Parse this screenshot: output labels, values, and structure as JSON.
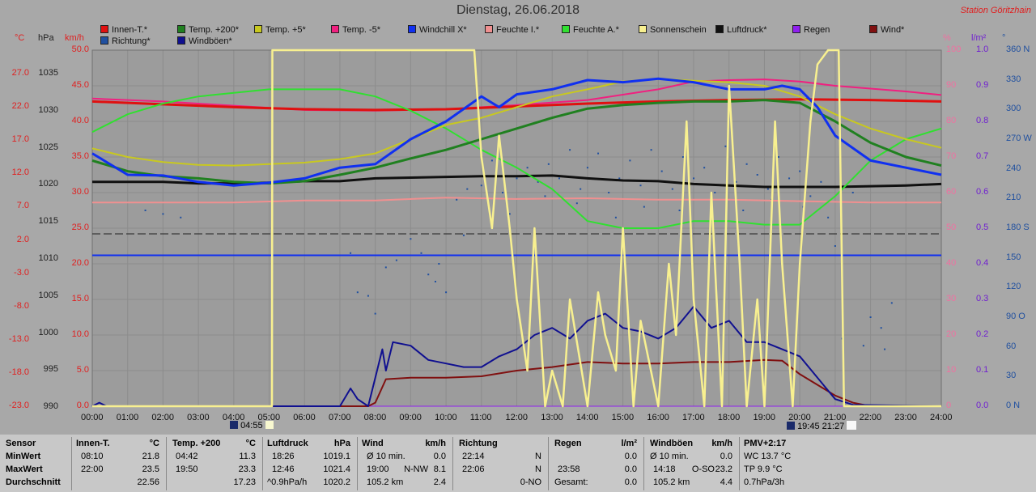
{
  "title": "Dienstag, 26.06.2018",
  "station": "Station Göritzhain",
  "colors": {
    "background": "#a8a8a8",
    "plot_background": "#9c9c9c",
    "grid": "#8c8c8c",
    "temp_axis": "#e02020",
    "hpa_axis": "#202020",
    "wind_axis": "#e02020",
    "pct_axis": "#f070a0",
    "rain_axis": "#7020d0",
    "deg_axis": "#2050a0"
  },
  "legend": [
    {
      "label": "Innen-T.*",
      "color": "#e01010"
    },
    {
      "label": "Temp. +200*",
      "color": "#208020"
    },
    {
      "label": "Temp. +5*",
      "color": "#c8c820"
    },
    {
      "label": "Temp. -5*",
      "color": "#f02080"
    },
    {
      "label": "Windchill X*",
      "color": "#1030f0"
    },
    {
      "label": "Feuchte I.*",
      "color": "#f09090"
    },
    {
      "label": "Feuchte A.*",
      "color": "#30e030"
    },
    {
      "label": "Sonnenschein",
      "color": "#f8f090"
    },
    {
      "label": "Luftdruck*",
      "color": "#101010"
    },
    {
      "label": "Regen",
      "color": "#9020f0"
    },
    {
      "label": "Wind*",
      "color": "#801010"
    },
    {
      "label": "Richtung*",
      "color": "#2050a0"
    },
    {
      "label": "Windböen*",
      "color": "#101090"
    }
  ],
  "axis_units": {
    "temp": "°C",
    "hpa": "hPa",
    "wind": "km/h",
    "pct": "%",
    "rain": "l/m²",
    "deg": "°"
  },
  "axis_ticks": {
    "temp": [
      "27.0",
      "22.0",
      "17.0",
      "12.0",
      "7.0",
      "2.0",
      "-3.0",
      "-8.0",
      "-13.0",
      "-18.0",
      "-23.0"
    ],
    "hpa": [
      "1035",
      "1030",
      "1025",
      "1020",
      "1015",
      "1010",
      "1005",
      "1000",
      "995",
      "990"
    ],
    "wind": [
      "50.0",
      "45.0",
      "40.0",
      "35.0",
      "30.0",
      "25.0",
      "20.0",
      "15.0",
      "10.0",
      "5.0",
      "0.0"
    ],
    "pct": [
      "100",
      "90",
      "80",
      "70",
      "60",
      "50",
      "40",
      "30",
      "20",
      "10",
      "0"
    ],
    "rain": [
      "1.0",
      "0.9",
      "0.8",
      "0.7",
      "0.6",
      "0.5",
      "0.4",
      "0.3",
      "0.2",
      "0.1",
      "0.0"
    ],
    "deg": [
      "360 N",
      "330",
      "300",
      "270 W",
      "240",
      "210",
      "180 S",
      "150",
      "120",
      "90 O",
      "60",
      "30",
      "0 N"
    ],
    "time": [
      "00:00",
      "01:00",
      "02:00",
      "03:00",
      "04:00",
      "05:00",
      "06:00",
      "07:00",
      "08:00",
      "09:00",
      "10:00",
      "11:00",
      "12:00",
      "13:00",
      "14:00",
      "15:00",
      "16:00",
      "17:00",
      "18:00",
      "19:00",
      "20:00",
      "21:00",
      "22:00",
      "23:00",
      "24:00"
    ]
  },
  "sun_events": {
    "sunrise": "04:55",
    "moon": "19:45",
    "sunset": "21:27"
  },
  "chart_data": {
    "type": "line",
    "title": "Dienstag, 26.06.2018",
    "x_unit": "hours",
    "xlim": [
      0,
      24
    ],
    "wind_ylim": [
      0,
      50
    ],
    "series": [
      {
        "name": "Innen-T.*",
        "axis": "wind",
        "x": [
          0,
          2,
          4,
          6,
          8,
          10,
          12,
          14,
          16,
          18,
          20,
          22,
          24
        ],
        "y": [
          42.8,
          42.4,
          42.0,
          41.7,
          41.6,
          41.7,
          42.1,
          42.5,
          42.8,
          43.0,
          43.1,
          43.0,
          42.8
        ]
      },
      {
        "name": "Temp. +200*",
        "axis": "wind",
        "x": [
          0,
          1,
          2,
          3,
          4,
          5,
          6,
          7,
          8,
          9,
          10,
          11,
          12,
          13,
          14,
          15,
          16,
          17,
          18,
          19,
          20,
          21,
          22,
          23,
          24
        ],
        "y": [
          34.5,
          33.0,
          32.3,
          32.0,
          31.5,
          31.3,
          31.6,
          32.5,
          33.5,
          34.8,
          36.0,
          37.5,
          39.0,
          40.5,
          41.8,
          42.3,
          42.6,
          42.8,
          42.8,
          43.0,
          42.6,
          40.0,
          37.0,
          35.0,
          33.8
        ]
      },
      {
        "name": "Temp. +5*",
        "axis": "wind",
        "x": [
          0,
          1,
          2,
          3,
          4,
          5,
          6,
          7,
          8,
          9,
          10,
          11,
          12,
          13,
          14,
          15,
          16,
          17,
          18,
          19,
          20,
          21,
          22,
          23,
          24
        ],
        "y": [
          36.2,
          35.0,
          34.3,
          33.9,
          33.8,
          34.0,
          34.2,
          34.7,
          35.5,
          37.5,
          39.5,
          40.5,
          42.0,
          43.5,
          44.5,
          45.6,
          46.0,
          45.7,
          45.5,
          45.0,
          43.5,
          41.0,
          39.0,
          37.5,
          36.3
        ]
      },
      {
        "name": "Temp. -5*",
        "axis": "wind",
        "x": [
          0,
          2,
          4,
          6,
          8,
          10,
          12,
          14,
          16,
          17,
          18,
          19,
          20,
          21,
          22,
          23,
          24
        ],
        "y": [
          43.2,
          42.8,
          42.2,
          41.6,
          41.5,
          41.7,
          42.3,
          43.0,
          44.5,
          45.6,
          45.8,
          45.9,
          45.6,
          45.0,
          44.6,
          44.2,
          43.7
        ]
      },
      {
        "name": "Windchill X*",
        "axis": "wind",
        "x": [
          0,
          1,
          2,
          3,
          4,
          5,
          6,
          7,
          8,
          9,
          10,
          11,
          11.5,
          12,
          13,
          14,
          15,
          16,
          17,
          18,
          19,
          19.5,
          20,
          20.5,
          21,
          22,
          23,
          24
        ],
        "y": [
          35.5,
          32.5,
          32.4,
          31.5,
          31.0,
          31.4,
          32.0,
          33.5,
          34.0,
          37.5,
          40.0,
          43.5,
          42.0,
          43.8,
          44.5,
          45.8,
          45.5,
          46.0,
          45.5,
          44.5,
          44.5,
          45.0,
          44.5,
          42.0,
          38.0,
          34.5,
          33.5,
          32.5
        ]
      },
      {
        "name": "Feuchte I.*",
        "axis": "wind",
        "x": [
          0,
          4,
          6,
          8,
          10,
          12,
          14,
          16,
          18,
          20,
          22,
          24
        ],
        "y": [
          28.6,
          28.6,
          28.9,
          28.9,
          29.3,
          29.1,
          29.2,
          29.0,
          29.0,
          28.8,
          28.6,
          28.6
        ]
      },
      {
        "name": "Feuchte A.*",
        "axis": "wind",
        "x": [
          0,
          1,
          2,
          3,
          4,
          5,
          6,
          7,
          8,
          9,
          10,
          11,
          12,
          13,
          14,
          15,
          16,
          17,
          18,
          19,
          20,
          21,
          22,
          23,
          24
        ],
        "y": [
          38.5,
          41.0,
          42.5,
          43.5,
          44.0,
          44.5,
          44.5,
          44.5,
          43.5,
          41.5,
          39.0,
          36.0,
          33.5,
          30.5,
          26.0,
          25.0,
          25.0,
          26.0,
          26.0,
          25.5,
          25.5,
          29.5,
          34.5,
          37.5,
          39.0
        ]
      },
      {
        "name": "Luftdruck*",
        "axis": "wind",
        "x": [
          0,
          1,
          2,
          3,
          4,
          5,
          6,
          7,
          8,
          9,
          10,
          11,
          12,
          13,
          14,
          15,
          16,
          17,
          18,
          19,
          20,
          21,
          22,
          23,
          24
        ],
        "y": [
          31.5,
          31.5,
          31.5,
          31.3,
          31.3,
          31.4,
          31.6,
          31.6,
          32.0,
          32.1,
          32.2,
          32.3,
          32.3,
          32.4,
          32.0,
          31.7,
          31.6,
          31.2,
          31.0,
          30.8,
          30.8,
          30.8,
          30.9,
          31.0,
          31.2
        ]
      },
      {
        "name": "Regen",
        "axis": "wind",
        "x": [
          0,
          24
        ],
        "y": [
          0,
          0
        ]
      },
      {
        "name": "Wind*",
        "axis": "wind",
        "x": [
          0,
          7.8,
          8.0,
          8.3,
          9,
          10,
          11,
          12,
          13,
          14,
          15,
          16,
          17,
          18,
          19,
          19.5,
          20,
          21,
          21.5,
          22,
          24
        ],
        "y": [
          0,
          0,
          0.5,
          3.8,
          4.0,
          4.0,
          4.2,
          5.0,
          5.5,
          6.2,
          6.0,
          6.0,
          6.2,
          6.2,
          6.5,
          6.4,
          4.5,
          1.5,
          0.5,
          0,
          0
        ]
      },
      {
        "name": "Windböen*",
        "axis": "wind",
        "x": [
          0,
          0.2,
          0.4,
          7.0,
          7.3,
          7.5,
          7.8,
          8.0,
          8.2,
          8.3,
          8.5,
          9,
          9.5,
          10,
          10.5,
          11,
          11.5,
          12,
          12.5,
          13,
          13.5,
          14,
          14.5,
          15,
          15.5,
          16,
          16.5,
          17,
          17.5,
          18,
          18.5,
          19,
          19.5,
          20,
          20.5,
          21,
          21.5,
          24
        ],
        "y": [
          0,
          0.5,
          0,
          0,
          2.5,
          1.0,
          0,
          4.0,
          8.0,
          5.0,
          9.0,
          8.5,
          6.5,
          6.0,
          5.5,
          5.5,
          7.0,
          8.0,
          10.0,
          11.0,
          9.5,
          12.0,
          13.0,
          11.0,
          10.5,
          9.5,
          11.0,
          14.0,
          11.0,
          12.0,
          9.0,
          9.0,
          8.0,
          7.0,
          4.0,
          1.0,
          0.2,
          0
        ]
      },
      {
        "name": "Sonnenschein",
        "axis": "wind",
        "x": [
          0,
          5.08,
          5.09,
          10.8,
          11.0,
          11.3,
          11.5,
          11.8,
          12.0,
          12.3,
          12.5,
          12.8,
          13.0,
          13.3,
          13.5,
          14.0,
          14.3,
          14.5,
          14.8,
          15.0,
          15.3,
          15.5,
          16.0,
          16.3,
          16.5,
          16.8,
          17.0,
          17.3,
          17.5,
          17.8,
          18.0,
          18.3,
          18.5,
          18.8,
          19.0,
          19.3,
          19.5,
          19.8,
          20.0,
          20.3,
          20.5,
          20.8,
          21.0,
          21.1,
          21.25,
          21.3,
          24
        ],
        "y": [
          0,
          0,
          50.0,
          50.0,
          35.0,
          25.0,
          38.0,
          25.0,
          15.0,
          5.0,
          25.0,
          0,
          5.0,
          0,
          15.0,
          0,
          16.0,
          10.0,
          5.0,
          25.0,
          0,
          12.0,
          0,
          20.0,
          10.0,
          40.0,
          15.0,
          0,
          30.0,
          0,
          45.0,
          20.0,
          0,
          15.0,
          0,
          40.0,
          20.0,
          0,
          20.0,
          40.0,
          48.0,
          50.0,
          50.0,
          50.0,
          0,
          0,
          0
        ]
      }
    ],
    "reference_lines": [
      {
        "name": "Temp. -5* dashed",
        "value": 24.2,
        "style": "dashed"
      },
      {
        "name": "Windchill X* level",
        "value": 21.2,
        "style": "solid"
      }
    ],
    "wind_direction_points": [
      [
        1.5,
        27.5
      ],
      [
        2.0,
        27.0
      ],
      [
        2.5,
        26.5
      ],
      [
        9.0,
        23.5
      ],
      [
        9.3,
        21.5
      ],
      [
        9.5,
        18.5
      ],
      [
        9.7,
        17.5
      ],
      [
        10.0,
        16.0
      ],
      [
        10.3,
        29.0
      ],
      [
        10.6,
        30.5
      ],
      [
        11.0,
        31.0
      ],
      [
        11.3,
        34.5
      ],
      [
        11.6,
        30.0
      ],
      [
        12.0,
        32.0
      ],
      [
        12.3,
        33.5
      ],
      [
        12.6,
        31.5
      ],
      [
        12.9,
        34.0
      ],
      [
        13.2,
        32.0
      ],
      [
        13.5,
        36.0
      ],
      [
        13.8,
        30.5
      ],
      [
        14.0,
        33.5
      ],
      [
        14.3,
        35.5
      ],
      [
        14.6,
        30.0
      ],
      [
        14.9,
        32.0
      ],
      [
        15.2,
        34.5
      ],
      [
        15.5,
        31.0
      ],
      [
        15.8,
        36.0
      ],
      [
        16.1,
        33.0
      ],
      [
        16.4,
        30.5
      ],
      [
        16.7,
        35.0
      ],
      [
        17.0,
        32.0
      ],
      [
        17.3,
        33.5
      ],
      [
        17.6,
        30.0
      ],
      [
        17.9,
        36.5
      ],
      [
        18.2,
        31.5
      ],
      [
        18.5,
        34.0
      ],
      [
        18.8,
        32.5
      ],
      [
        19.1,
        30.5
      ],
      [
        19.4,
        35.0
      ],
      [
        19.7,
        32.0
      ],
      [
        20.0,
        33.0
      ],
      [
        20.3,
        29.5
      ],
      [
        20.6,
        31.5
      ],
      [
        21.0,
        22.5
      ],
      [
        21.5,
        30.0
      ],
      [
        22.0,
        12.5
      ],
      [
        22.3,
        11.0
      ],
      [
        22.6,
        14.5
      ],
      [
        7.3,
        21.5
      ],
      [
        7.5,
        16.0
      ],
      [
        7.8,
        15.5
      ],
      [
        8.0,
        13.0
      ],
      [
        8.3,
        19.5
      ],
      [
        8.6,
        20.5
      ],
      [
        9.8,
        20.0
      ],
      [
        10.5,
        24.0
      ],
      [
        11.8,
        27.0
      ],
      [
        12.8,
        29.5
      ],
      [
        13.7,
        28.5
      ],
      [
        14.8,
        26.5
      ],
      [
        15.6,
        28.0
      ],
      [
        16.6,
        27.5
      ],
      [
        17.5,
        28.5
      ],
      [
        18.4,
        27.5
      ],
      [
        19.2,
        29.0
      ],
      [
        20.1,
        28.0
      ],
      [
        20.8,
        26.5
      ],
      [
        21.2,
        9.5
      ],
      [
        21.8,
        8.5
      ],
      [
        22.4,
        8.0
      ]
    ]
  },
  "table": {
    "sensor": {
      "header": "Sensor",
      "rows": [
        "MinWert",
        "MaxWert",
        "Durchschnitt"
      ]
    },
    "innen": {
      "header": "Innen-T.",
      "unit": "°C",
      "rows": [
        [
          "08:10",
          "21.8"
        ],
        [
          "22:00",
          "23.5"
        ],
        [
          "",
          "22.56"
        ]
      ]
    },
    "temp": {
      "header": "Temp. +200",
      "unit": "°C",
      "rows": [
        [
          "04:42",
          "11.3"
        ],
        [
          "19:50",
          "23.3"
        ],
        [
          "",
          "17.23"
        ]
      ]
    },
    "luftdruck": {
      "header": "Luftdruck",
      "unit": "hPa",
      "rows": [
        [
          "18:26",
          "1019.1"
        ],
        [
          "12:46",
          "1021.4"
        ],
        [
          "^0.9hPa/h",
          "1020.2"
        ]
      ]
    },
    "wind": {
      "header": "Wind",
      "unit": "km/h",
      "rows": [
        [
          "Ø 10 min.",
          "",
          "0.0"
        ],
        [
          "19:00",
          "N-NW",
          "8.1"
        ],
        [
          "105.2 km",
          "",
          "2.4"
        ]
      ]
    },
    "richtung": {
      "header": "Richtung",
      "rows": [
        [
          "22:14",
          "N"
        ],
        [
          "22:06",
          "N"
        ],
        [
          "",
          "0-NO"
        ]
      ]
    },
    "regen": {
      "header": "Regen",
      "unit": "l/m²",
      "rows": [
        [
          "",
          "0.0"
        ],
        [
          "23:58",
          "0.0"
        ],
        [
          "Gesamt:",
          "0.0"
        ]
      ]
    },
    "windboen": {
      "header": "Windböen",
      "unit": "km/h",
      "rows": [
        [
          "Ø 10 min.",
          "",
          "0.0"
        ],
        [
          "14:18",
          "O-SO",
          "23.2"
        ],
        [
          "105.2 km",
          "",
          "4.4"
        ]
      ]
    },
    "pmv": {
      "header": "PMV+2:17",
      "rows": [
        "WC 13.7 °C",
        "TP 9.9 °C",
        "0.7hPa/3h"
      ]
    }
  }
}
